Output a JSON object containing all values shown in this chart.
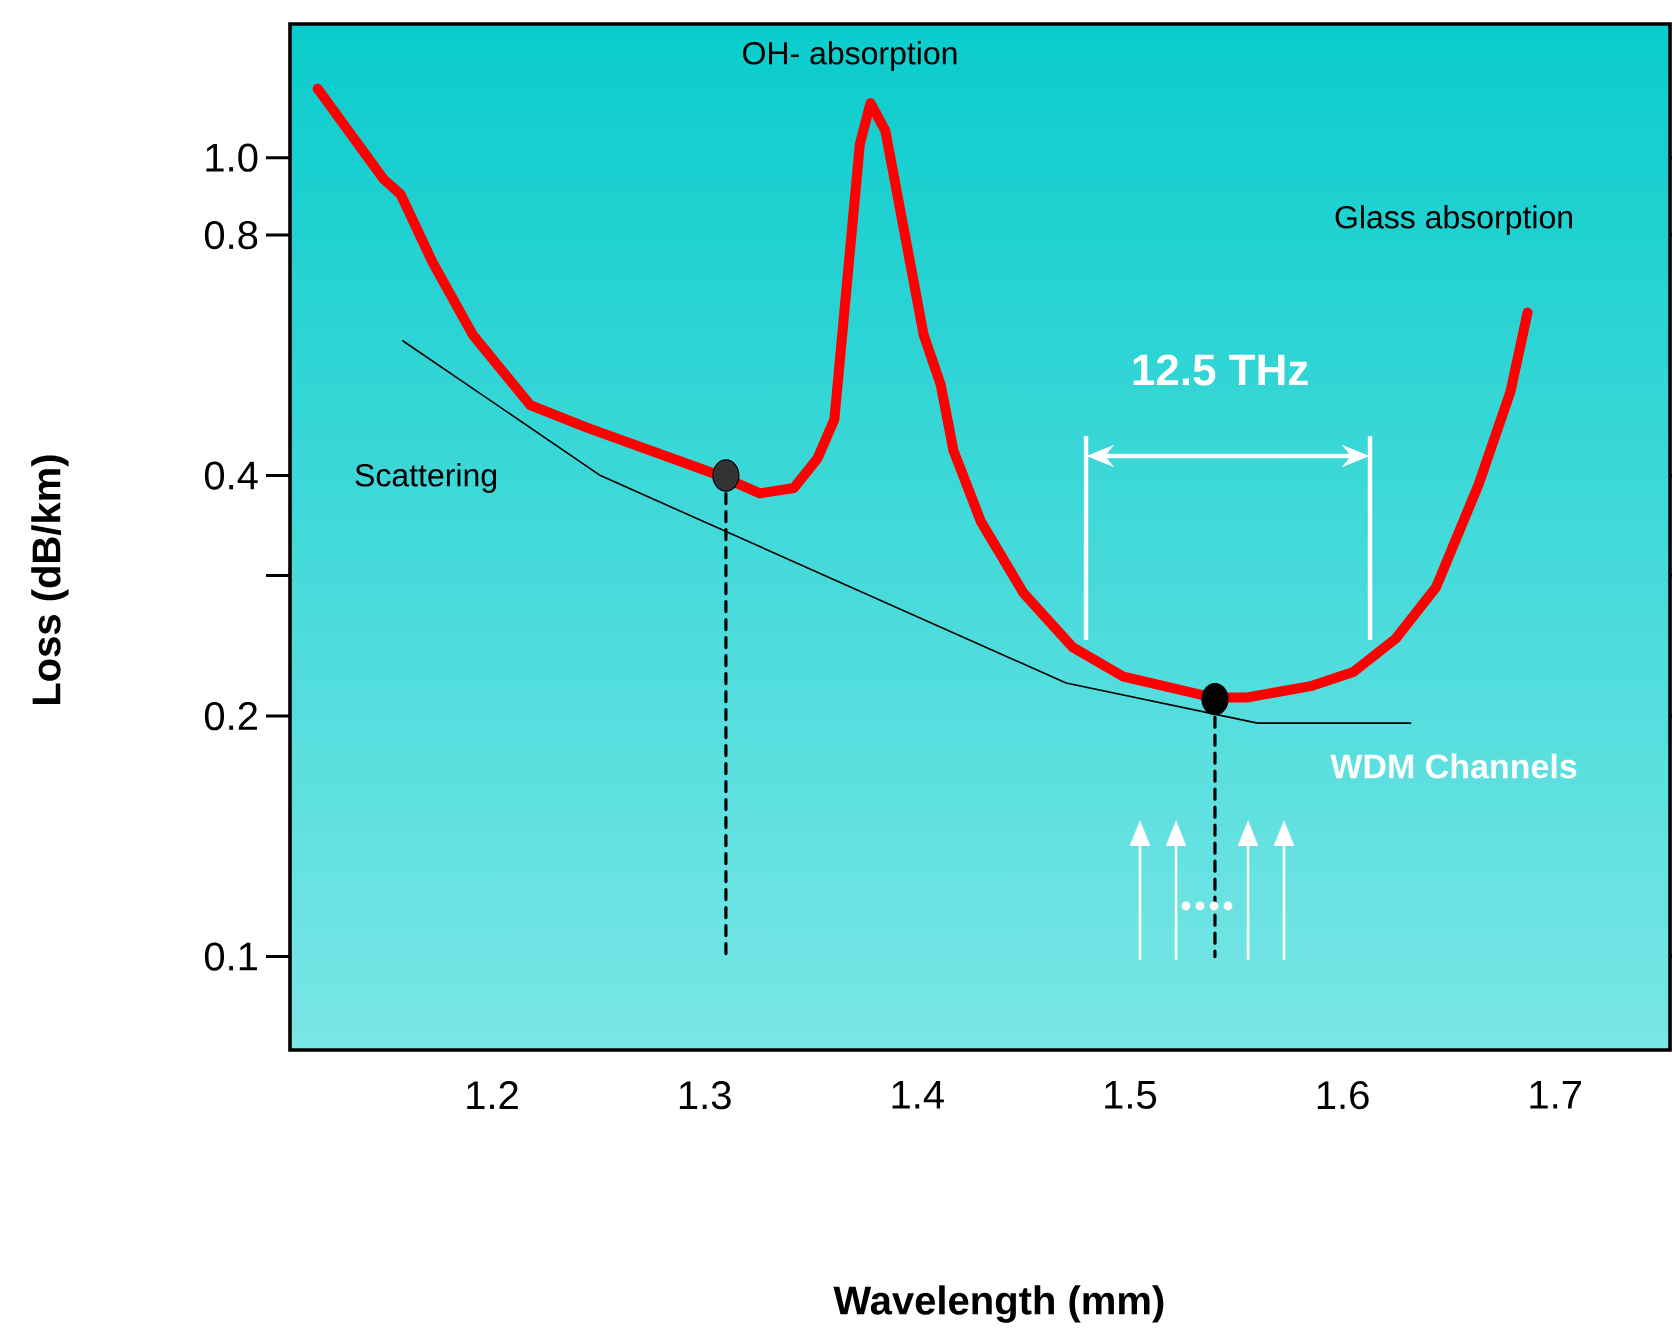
{
  "chart_data": {
    "type": "line",
    "xlabel": "Wavelength (mm)",
    "ylabel": "Loss (dB/km)",
    "log": "y",
    "xlim": [
      1.105,
      1.754
    ],
    "ylim": [
      0.0764,
      1.47
    ],
    "xticks": [
      1.2,
      1.3,
      1.4,
      1.5,
      1.6,
      1.7
    ],
    "yticks": [
      0.1,
      0.2,
      {
        "value": 0.3,
        "label": null
      },
      0.4,
      0.8,
      {
        "value": 1,
        "label": "1.0"
      }
    ],
    "annotations": [
      "OH- absorption",
      "Glass absorption",
      "12.5  THz",
      "WDM Channels"
    ],
    "series": [
      {
        "type": "line",
        "color": "#ff0000",
        "x": [
          1.118,
          1.149,
          1.157,
          1.172,
          1.191,
          1.218,
          1.244,
          1.307,
          1.326,
          1.342,
          1.353,
          1.361,
          1.373,
          1.378,
          1.385,
          1.403,
          1.411,
          1.417,
          1.43,
          1.45,
          1.473,
          1.497,
          1.539,
          1.555,
          1.585,
          1.605,
          1.625,
          1.644,
          1.664,
          1.679,
          1.687
        ],
        "values": [
          1.22,
          0.94,
          0.9,
          0.74,
          0.6,
          0.49,
          0.46,
          0.4,
          0.38,
          0.386,
          0.42,
          0.47,
          1.04,
          1.17,
          1.08,
          0.6,
          0.52,
          0.43,
          0.35,
          0.285,
          0.244,
          0.224,
          0.211,
          0.211,
          0.218,
          0.227,
          0.25,
          0.29,
          0.39,
          0.51,
          0.64
        ]
      },
      {
        "name": "Scattering",
        "type": "line",
        "color": "#000000",
        "x": [
          1.158,
          1.251,
          1.47,
          1.56,
          1.632
        ],
        "values": [
          0.59,
          0.4,
          0.22,
          0.196,
          0.196
        ]
      },
      {
        "type": "line",
        "line_style": "dashed",
        "color": "#000000",
        "x": [
          1.31,
          1.31
        ],
        "values": [
          0.4,
          0.1
        ]
      },
      {
        "type": "line",
        "line_style": "dashed",
        "color": "#000000",
        "x": [
          1.54,
          1.54
        ],
        "values": [
          0.21,
          0.1
        ]
      },
      {
        "type": "scatter",
        "marker": "circle",
        "x": [
          1.31,
          1.54
        ],
        "values": [
          0.4,
          0.21
        ],
        "colors": [
          "#333333",
          "#000000"
        ]
      }
    ]
  }
}
